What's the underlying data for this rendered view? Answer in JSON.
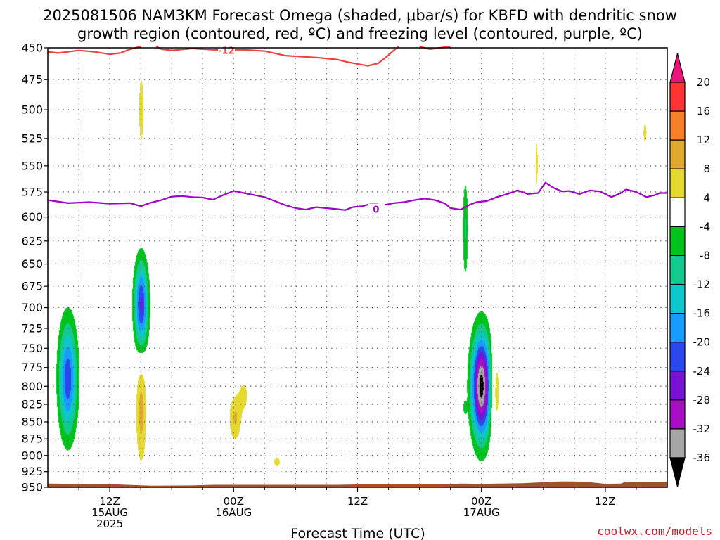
{
  "page": {
    "credit": "coolwx.com/models"
  },
  "chart_data": {
    "type": "heatmap",
    "title_lines": [
      "2025081506 NAM3KM Forecast Omega (shaded, μbar/s) for KBFD with dendritic snow",
      "growth region (contoured, red, ºC) and freezing level (contoured, purple, ºC)"
    ],
    "xlabel": "Forecast Time (UTC)",
    "ylabel": "",
    "y_axis": {
      "ticks": [
        450,
        475,
        500,
        525,
        550,
        575,
        600,
        625,
        650,
        675,
        700,
        725,
        750,
        775,
        800,
        825,
        850,
        875,
        900,
        925,
        950
      ],
      "range": [
        450,
        950
      ],
      "log_pressure": true
    },
    "x_axis": {
      "range_hours": [
        6,
        66
      ],
      "ticks": [
        {
          "hour": 12,
          "lines": [
            "12Z",
            "15AUG",
            "2025"
          ]
        },
        {
          "hour": 24,
          "lines": [
            "00Z",
            "16AUG"
          ]
        },
        {
          "hour": 36,
          "lines": [
            "12Z"
          ]
        },
        {
          "hour": 48,
          "lines": [
            "00Z",
            "17AUG"
          ]
        },
        {
          "hour": 60,
          "lines": [
            "12Z"
          ]
        }
      ],
      "minor_hours": [
        9,
        15,
        18,
        21,
        27,
        30,
        33,
        39,
        42,
        45,
        51,
        54,
        57,
        63
      ],
      "grid": "dotted"
    },
    "colorbar": {
      "labels": [
        20,
        16,
        12,
        8,
        4,
        -4,
        -8,
        -12,
        -16,
        -20,
        -24,
        -28,
        -32,
        -36
      ],
      "bins": [
        {
          "range": [
            16,
            20
          ],
          "color": "#ff3535"
        },
        {
          "range": [
            12,
            16
          ],
          "color": "#f7802a"
        },
        {
          "range": [
            8,
            12
          ],
          "color": "#e0a92d"
        },
        {
          "range": [
            4,
            8
          ],
          "color": "#e5d92f"
        },
        {
          "range": [
            -4,
            4
          ],
          "color": "#ffffff"
        },
        {
          "range": [
            -8,
            -4
          ],
          "color": "#00c21c"
        },
        {
          "range": [
            -12,
            -8
          ],
          "color": "#14c98d"
        },
        {
          "range": [
            -16,
            -12
          ],
          "color": "#0dc7cd"
        },
        {
          "range": [
            -20,
            -16
          ],
          "color": "#1a9bff"
        },
        {
          "range": [
            -24,
            -20
          ],
          "color": "#2b47f0"
        },
        {
          "range": [
            -28,
            -24
          ],
          "color": "#7a12d6"
        },
        {
          "range": [
            -32,
            -28
          ],
          "color": "#a80ec4"
        },
        {
          "range": [
            -36,
            -32
          ],
          "color": "#a6a6a6"
        }
      ],
      "top_arrow_color": "#e8147a",
      "bottom_arrow_color": "#000000"
    },
    "contours": [
      {
        "name": "dendritic snow growth",
        "color": "#ef4040",
        "label": "-12",
        "label_at": {
          "hour": 23.3,
          "p": 452
        },
        "segments": [
          [
            [
              6.0,
              453
            ],
            [
              7,
              454
            ],
            [
              9,
              452
            ],
            [
              10.5,
              453
            ],
            [
              12,
              455
            ],
            [
              13,
              454
            ],
            [
              14,
              451
            ],
            [
              15,
              449
            ]
          ],
          [
            [
              16.5,
              449
            ],
            [
              17,
              451
            ],
            [
              18,
              452
            ],
            [
              20,
              450.5
            ],
            [
              22,
              451.5
            ],
            [
              25,
              451.5
            ],
            [
              27,
              452.5
            ],
            [
              29,
              456
            ],
            [
              32,
              457.5
            ],
            [
              34,
              459
            ],
            [
              35,
              461
            ],
            [
              36,
              462.5
            ],
            [
              37,
              464
            ],
            [
              38,
              462
            ],
            [
              38.8,
              457
            ],
            [
              39.5,
              452
            ],
            [
              40,
              449
            ]
          ],
          [
            [
              42,
              449
            ],
            [
              43,
              451
            ],
            [
              44,
              450
            ],
            [
              45,
              449
            ]
          ]
        ]
      },
      {
        "name": "freezing level",
        "color": "#a000c8",
        "label": "0",
        "label_at": {
          "hour": 37.8,
          "p": 592
        },
        "segments": [
          [
            [
              6.0,
              583
            ],
            [
              8,
              586
            ],
            [
              10,
              585
            ],
            [
              12,
              586.5
            ],
            [
              14,
              586
            ],
            [
              15,
              589
            ],
            [
              16,
              585.5
            ],
            [
              17,
              583
            ],
            [
              18,
              579.5
            ],
            [
              19,
              579
            ],
            [
              20,
              580
            ],
            [
              21,
              580.5
            ],
            [
              22,
              582.5
            ],
            [
              23,
              578
            ],
            [
              24,
              574
            ],
            [
              25,
              576
            ],
            [
              26,
              578
            ],
            [
              27,
              580
            ],
            [
              28,
              584
            ],
            [
              29,
              588
            ],
            [
              30,
              591
            ],
            [
              31,
              592.5
            ],
            [
              32,
              590
            ],
            [
              33,
              591
            ],
            [
              34,
              592
            ],
            [
              34.8,
              593
            ],
            [
              35.5,
              590
            ],
            [
              36.5,
              589
            ],
            [
              37.5,
              586
            ],
            [
              38.5,
              588
            ],
            [
              39.5,
              586
            ],
            [
              40.5,
              585
            ],
            [
              41.5,
              583
            ],
            [
              42.5,
              581.5
            ],
            [
              43.5,
              583
            ],
            [
              44.5,
              586.5
            ],
            [
              45,
              591
            ],
            [
              46,
              592.5
            ],
            [
              46.8,
              588
            ],
            [
              47.5,
              585
            ],
            [
              48.5,
              584
            ],
            [
              49.5,
              580
            ],
            [
              50.5,
              577
            ],
            [
              51.5,
              573.5
            ],
            [
              52.5,
              577
            ],
            [
              53.5,
              576
            ],
            [
              54.2,
              566
            ],
            [
              55,
              571
            ],
            [
              55.8,
              574.5
            ],
            [
              56.5,
              574
            ],
            [
              57.5,
              577
            ],
            [
              58.5,
              573.5
            ],
            [
              59.5,
              574.5
            ],
            [
              60,
              577
            ],
            [
              60.6,
              580
            ],
            [
              61.5,
              576
            ],
            [
              62,
              572.5
            ],
            [
              63,
              575
            ],
            [
              64,
              580
            ],
            [
              64.8,
              578
            ],
            [
              65.3,
              576
            ],
            [
              66,
              576
            ]
          ]
        ]
      }
    ],
    "terrain": {
      "color": "#a0522d",
      "surface_pressure": [
        [
          6,
          944
        ],
        [
          12,
          945
        ],
        [
          16,
          947.5
        ],
        [
          20,
          947
        ],
        [
          22,
          946
        ],
        [
          34,
          946
        ],
        [
          36,
          945.5
        ],
        [
          44,
          945.5
        ],
        [
          46,
          944
        ],
        [
          48,
          944.5
        ],
        [
          52,
          943.5
        ],
        [
          55,
          941
        ],
        [
          56,
          940.5
        ],
        [
          58,
          941
        ],
        [
          60,
          944.5
        ],
        [
          61.5,
          944
        ],
        [
          62,
          941
        ],
        [
          66,
          941
        ]
      ]
    },
    "omega_blobs": [
      {
        "hour": 15.05,
        "p": 500,
        "dh": 0.35,
        "dlp": 0.09,
        "peak": 5.5
      },
      {
        "hour": 15.05,
        "p": 697,
        "dh": 0.65,
        "dlp": 0.072,
        "peak": -25
      },
      {
        "hour": 15.05,
        "p": 835,
        "dh": 0.52,
        "dlp": 0.09,
        "peak": 9.5
      },
      {
        "hour": 7.95,
        "p": 790,
        "dh": 0.85,
        "dlp": 0.092,
        "peak": -23
      },
      {
        "hour": 9.3,
        "p": 790,
        "dh": 0.28,
        "dlp": 0.025,
        "peak": 5.5
      },
      {
        "hour": 24.15,
        "p": 845,
        "dh": 0.62,
        "dlp": 0.04,
        "peak": 8.5
      },
      {
        "hour": 25.0,
        "p": 812,
        "dh": 0.55,
        "dlp": 0.03,
        "peak": 5.2
      },
      {
        "hour": 28.2,
        "p": 910,
        "dh": 0.48,
        "dlp": 0.012,
        "peak": 5.5
      },
      {
        "hour": 46.45,
        "p": 612,
        "dh": 0.28,
        "dlp": 0.085,
        "peak": -8.5
      },
      {
        "hour": 46.4,
        "p": 830,
        "dh": 0.18,
        "dlp": 0.012,
        "peak": -6.0
      },
      {
        "hour": 48.0,
        "p": 800,
        "dh": 0.92,
        "dlp": 0.085,
        "peak": -38
      },
      {
        "hour": 49.3,
        "p": 805,
        "dh": 0.55,
        "dlp": 0.078,
        "peak": 8.5
      },
      {
        "hour": 53.35,
        "p": 548,
        "dh": 0.17,
        "dlp": 0.06,
        "peak": 5.5
      },
      {
        "hour": 63.85,
        "p": 520,
        "dh": 0.25,
        "dlp": 0.025,
        "peak": 5.5
      }
    ]
  }
}
